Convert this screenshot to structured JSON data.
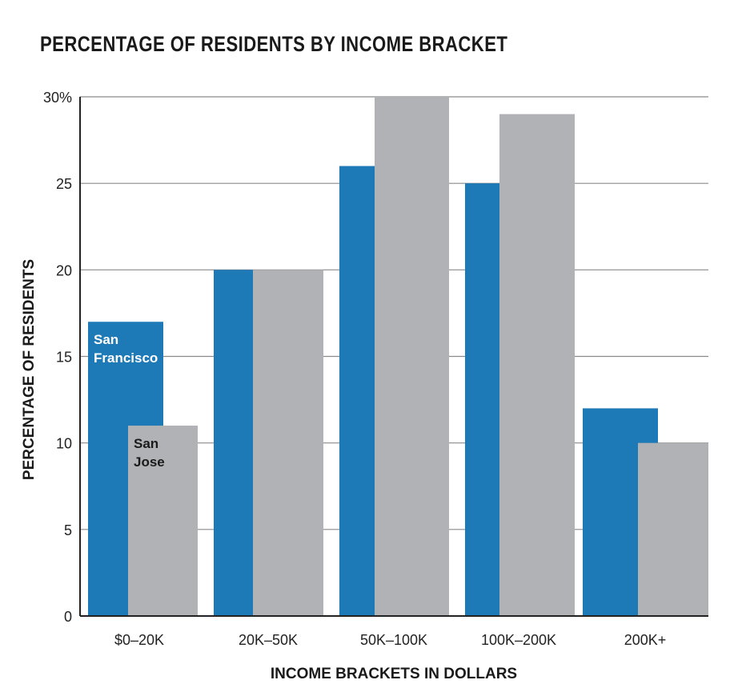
{
  "chart_data": {
    "type": "bar",
    "title": "PERCENTAGE OF RESIDENTS BY INCOME BRACKET",
    "xlabel": "INCOME BRACKETS IN DOLLARS",
    "ylabel": "PERCENTAGE OF RESIDENTS",
    "categories": [
      "$0–20K",
      "20K–50K",
      "50K–100K",
      "100K–200K",
      "200K+"
    ],
    "series": [
      {
        "name": "San Francisco",
        "label_lines": [
          "San",
          "Francisco"
        ],
        "color": "#1e7ab7",
        "label_color": "#ffffff",
        "values": [
          17,
          20,
          26,
          25,
          12
        ]
      },
      {
        "name": "San Jose",
        "label_lines": [
          "San",
          "Jose"
        ],
        "color": "#b1b2b5",
        "label_color": "#1a1a1a",
        "values": [
          11,
          20,
          30,
          29,
          10
        ]
      }
    ],
    "ylim": [
      0,
      30
    ],
    "yticks": [
      0,
      5,
      10,
      15,
      20,
      25,
      30
    ],
    "ytick_labels": [
      "0",
      "5",
      "10",
      "15",
      "20",
      "25",
      "30%"
    ],
    "grid": true,
    "legend": "inline labels on first bars"
  }
}
